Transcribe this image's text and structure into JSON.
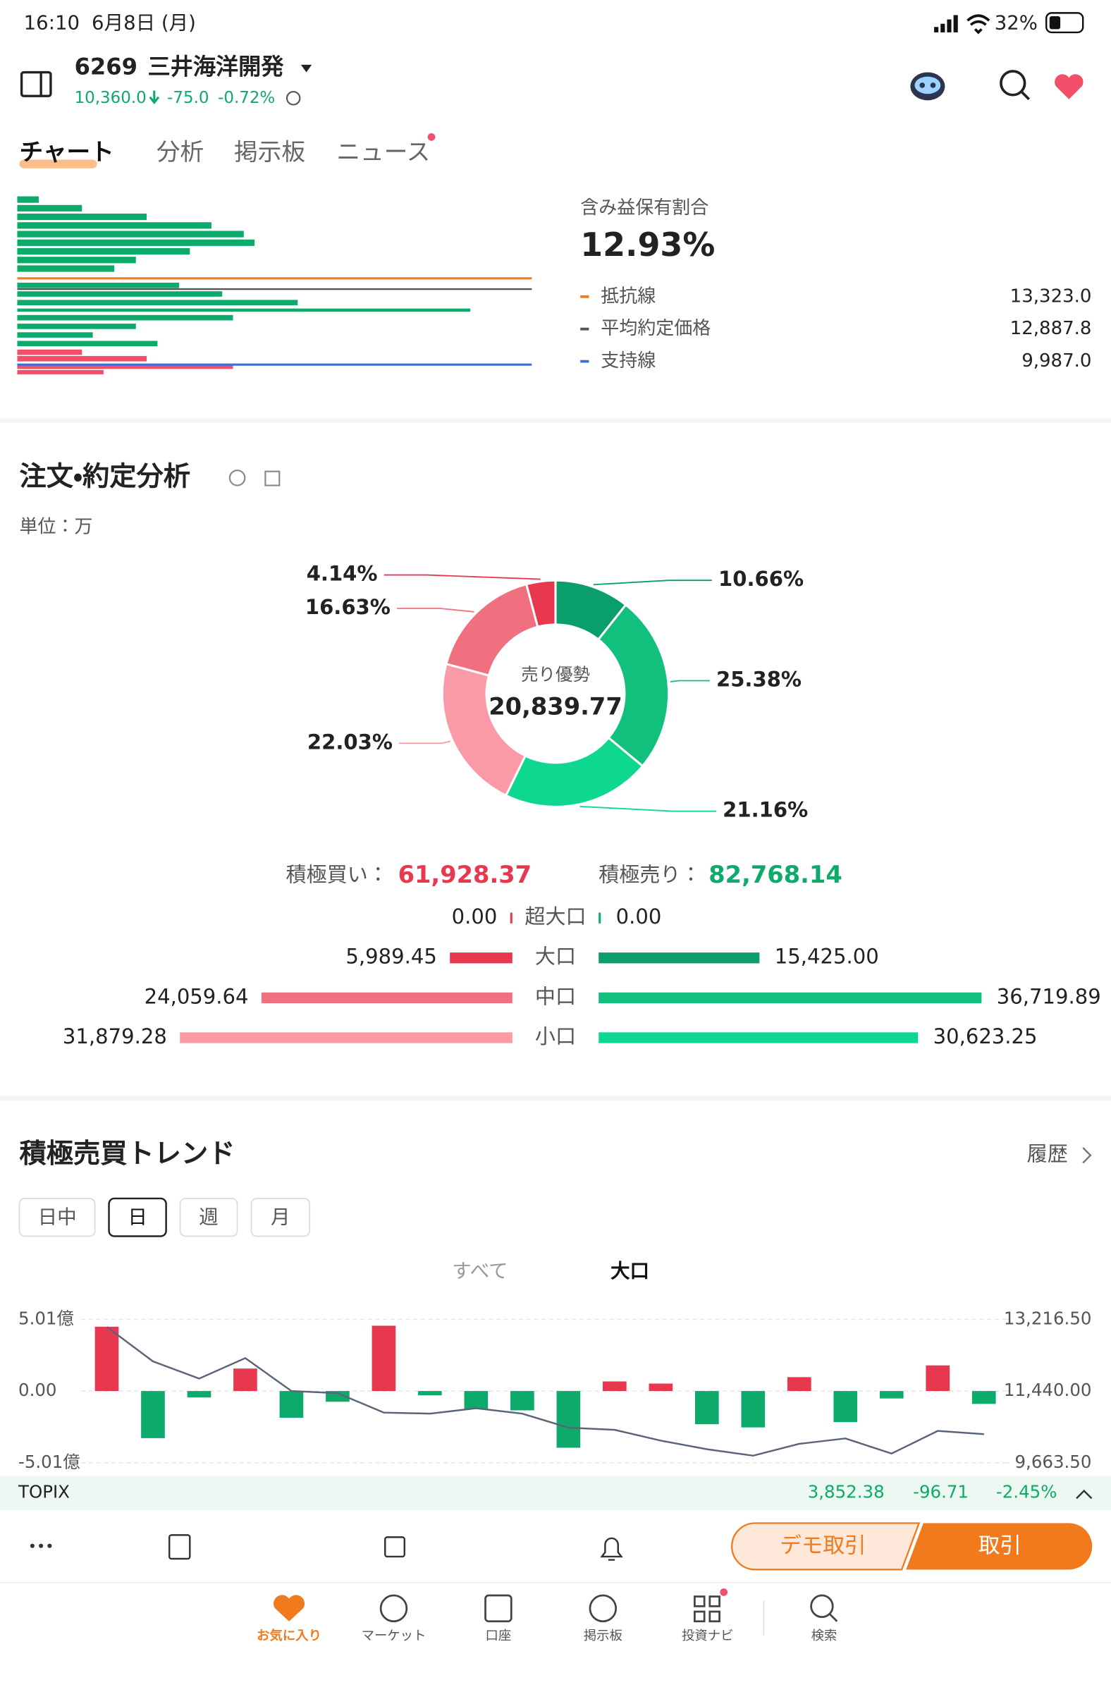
{
  "status_bar": {
    "time": "16:10",
    "date": "6月8日 (月)",
    "battery": "32%"
  },
  "header": {
    "code": "6269",
    "name": "三井海洋開発",
    "price": "10,360.0",
    "change": "-75.0",
    "change_pct": "-0.72%"
  },
  "tabs": [
    "チャート",
    "分析",
    "掲示板",
    "ニュース"
  ],
  "profile": {
    "title": "含み益保有割合",
    "value": "12.93%",
    "lines": [
      {
        "name": "抵抗線",
        "value": "13,323.0",
        "color": "#f07a1c"
      },
      {
        "name": "平均約定価格",
        "value": "12,887.8",
        "color": "#555555"
      },
      {
        "name": "支持線",
        "value": "9,987.0",
        "color": "#3a6fd8"
      }
    ]
  },
  "order_analysis": {
    "title": "注文・約定分析",
    "unit": "単位：万"
  },
  "trend": {
    "title": "積極売買トレンド",
    "history": "履歴",
    "periods": [
      "日中",
      "日",
      "週",
      "月"
    ],
    "selected_period": 1,
    "filters": [
      "すべて",
      "大口"
    ],
    "selected_filter": 1
  },
  "chart_data": [
    {
      "type": "pie",
      "center_label": "売り優勢",
      "center_value": "20,839.77",
      "values": [
        10.66,
        25.38,
        21.16,
        22.03,
        16.63,
        4.14
      ],
      "value_labels": [
        "10.66%",
        "25.38%",
        "21.16%",
        "22.03%",
        "16.63%",
        "4.14%"
      ],
      "colors": [
        "#0a9e6a",
        "#12c07e",
        "#0ed88f",
        "#f99aa6",
        "#f1707f",
        "#e8384f"
      ]
    },
    {
      "type": "bar",
      "orientation": "horizontal",
      "categories": [
        "超大口",
        "大口",
        "中口",
        "小口"
      ],
      "series": [
        {
          "name": "積極買い：",
          "total": 61928.37,
          "total_label": "61,928.37",
          "color": "#e8384f",
          "values": [
            0,
            5989.45,
            24059.64,
            31879.28
          ],
          "value_labels": [
            "0.00",
            "5,989.45",
            "24,059.64",
            "31,879.28"
          ],
          "colors": [
            "#e8384f",
            "#e8384f",
            "#f1707f",
            "#f99aa6"
          ]
        },
        {
          "name": "積極売り：",
          "total": 82768.14,
          "total_label": "82,768.14",
          "color": "#0cab6c",
          "values": [
            0,
            15425,
            36719.89,
            30623.25
          ],
          "value_labels": [
            "0.00",
            "15,425.00",
            "36,719.89",
            "30,623.25"
          ],
          "colors": [
            "#0cab6c",
            "#0a9e6a",
            "#12c07e",
            "#0ed88f"
          ]
        }
      ]
    },
    {
      "type": "bar",
      "ylim": [
        -5.01,
        5.01
      ],
      "yticks": [
        {
          "value": 5.01,
          "label": "5.01億"
        },
        {
          "value": 0,
          "label": "0.00"
        },
        {
          "value": -5.01,
          "label": "-5.01億"
        }
      ],
      "y2lim": [
        9663.5,
        13216.5
      ],
      "y2ticks": [
        {
          "value": 13216.5,
          "label": "13,216.50"
        },
        {
          "value": 11440,
          "label": "11,440.00"
        },
        {
          "value": 9663.5,
          "label": "9,663.50"
        }
      ],
      "grid": true,
      "series": [
        {
          "type": "bar",
          "positive_color": "#e8384f",
          "negative_color": "#0cab6c",
          "values": [
            4.49,
            -3.29,
            -0.45,
            1.57,
            -1.87,
            -0.75,
            4.56,
            -0.3,
            -1.27,
            -1.35,
            -3.96,
            0.67,
            0.52,
            -2.32,
            -2.54,
            0.97,
            -2.17,
            -0.52,
            1.79,
            -0.9
          ]
        },
        {
          "type": "line",
          "axis": "y2",
          "color": "#5a6478",
          "values": [
            13029,
            12175,
            11748,
            12255,
            11440,
            11387,
            10906,
            10880,
            11013,
            10880,
            10532,
            10479,
            10212,
            9999,
            9839,
            10132,
            10266,
            9892,
            10452,
            10372
          ]
        }
      ]
    }
  ],
  "index_bar": {
    "name": "TOPIX",
    "value": "3,852.38",
    "change": "-96.71",
    "change_pct": "-2.45%"
  },
  "actions": {
    "demo": "デモ取引",
    "trade": "取引"
  },
  "nav": {
    "items": [
      "お気に入り",
      "マーケット",
      "口座",
      "掲示板",
      "投資ナビ",
      "検索"
    ],
    "active": 0
  }
}
